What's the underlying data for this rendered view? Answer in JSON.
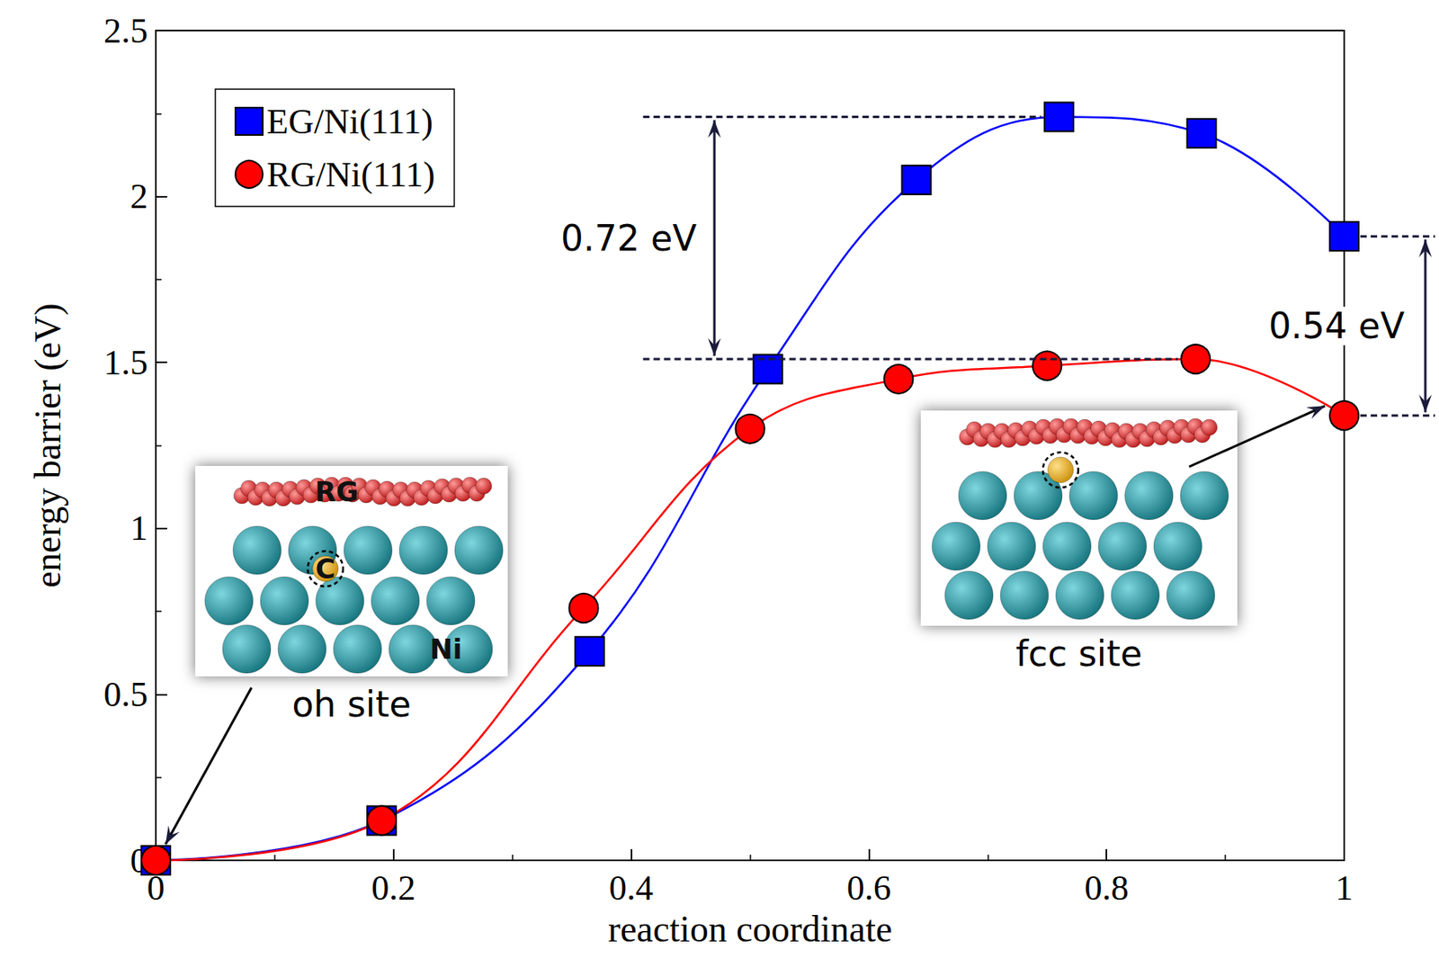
{
  "chart_data": {
    "type": "line",
    "xlabel": "reaction coordinate",
    "ylabel": "energy barrier (eV)",
    "xlim": [
      0,
      1
    ],
    "xticks": [
      0,
      0.2,
      0.4,
      0.6,
      0.8,
      1
    ],
    "ylim": [
      0,
      2.5
    ],
    "yticks": [
      0,
      0.5,
      1,
      1.5,
      2,
      2.5
    ],
    "grid": false,
    "legend": "upper left",
    "series": [
      {
        "name": "EG/Ni(111)",
        "color": "#0000ff",
        "marker": "square",
        "x": [
          0,
          0.19,
          0.365,
          0.515,
          0.64,
          0.76,
          0.88,
          1.0
        ],
        "values": [
          0,
          0.12,
          0.63,
          1.48,
          2.05,
          2.24,
          2.19,
          1.88
        ]
      },
      {
        "name": "RG/Ni(111)",
        "color": "#ff0000",
        "marker": "circle",
        "x": [
          0,
          0.19,
          0.36,
          0.5,
          0.625,
          0.75,
          0.875,
          1.0
        ],
        "values": [
          0,
          0.12,
          0.76,
          1.3,
          1.45,
          1.49,
          1.51,
          1.34
        ]
      }
    ],
    "annotations": [
      {
        "text": "0.72 eV",
        "low": 1.51,
        "high": 2.24
      },
      {
        "text": "0.54 eV",
        "low": 1.34,
        "high": 1.88
      }
    ],
    "insets": [
      {
        "site": "oh site",
        "point": [
          0,
          0
        ],
        "labels": [
          "RG",
          "C",
          "Ni"
        ]
      },
      {
        "site": "fcc site",
        "point": [
          1,
          1.34
        ]
      }
    ]
  }
}
